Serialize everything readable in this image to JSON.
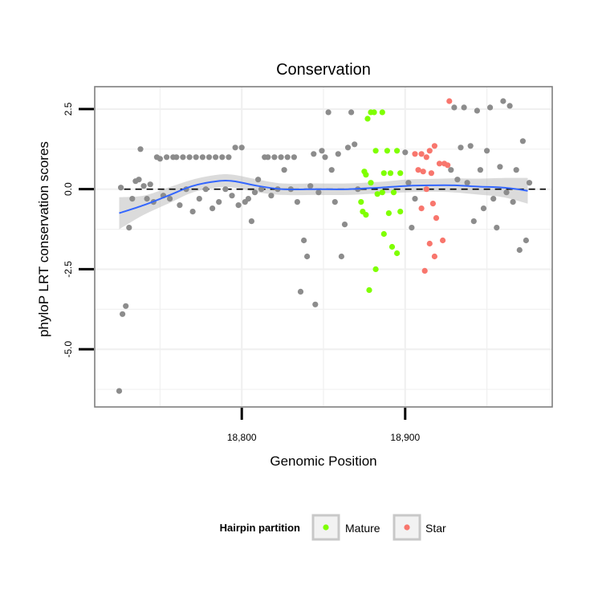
{
  "chart_data": {
    "type": "scatter",
    "title": "Conservation",
    "xlabel": "Genomic Position",
    "ylabel": "phyloP LRT conservation scores",
    "xlim": [
      18710,
      18990
    ],
    "ylim": [
      -6.8,
      3.2
    ],
    "x_ticks": [
      {
        "value": 18800,
        "label": "18,800"
      },
      {
        "value": 18900,
        "label": "18,900"
      }
    ],
    "y_ticks": [
      {
        "value": 2.5,
        "label": "2.5"
      },
      {
        "value": 0.0,
        "label": "0.0"
      },
      {
        "value": -2.5,
        "label": "-2.5"
      },
      {
        "value": -5.0,
        "label": "-5.0"
      }
    ],
    "grid": true,
    "reference_line": {
      "y": 0,
      "style": "dashed",
      "color": "#000000"
    },
    "legend": {
      "title": "Hairpin partition",
      "position": "bottom",
      "entries": [
        {
          "label": "Mature",
          "color": "#7FFF00"
        },
        {
          "label": "Star",
          "color": "#F8766D"
        }
      ]
    },
    "colors": {
      "other": "#8C8C8C",
      "mature": "#7FFF00",
      "star": "#F8766D",
      "smooth": "#3366FF",
      "band": "#BEBEBE"
    },
    "smooth": {
      "x": [
        18725,
        18740,
        18755,
        18770,
        18785,
        18795,
        18810,
        18825,
        18845,
        18865,
        18885,
        18900,
        18915,
        18930,
        18945,
        18960,
        18975
      ],
      "y": [
        -0.75,
        -0.5,
        -0.2,
        0.1,
        0.25,
        0.25,
        0.1,
        0.0,
        0.0,
        0.0,
        0.05,
        0.1,
        0.12,
        0.12,
        0.08,
        0.05,
        -0.05
      ],
      "se": [
        0.5,
        0.3,
        0.25,
        0.2,
        0.2,
        0.2,
        0.2,
        0.18,
        0.18,
        0.18,
        0.18,
        0.2,
        0.2,
        0.22,
        0.25,
        0.3,
        0.4
      ]
    },
    "series": [
      {
        "name": "Mature",
        "points": [
          [
            18875,
            0.55
          ],
          [
            18877,
            2.2
          ],
          [
            18879,
            2.4
          ],
          [
            18881,
            2.4
          ],
          [
            18886,
            2.4
          ],
          [
            18882,
            1.2
          ],
          [
            18889,
            1.2
          ],
          [
            18895,
            1.2
          ],
          [
            18876,
            0.45
          ],
          [
            18879,
            0.2
          ],
          [
            18887,
            0.5
          ],
          [
            18891,
            0.5
          ],
          [
            18897,
            0.5
          ],
          [
            18883,
            -0.15
          ],
          [
            18886,
            -0.1
          ],
          [
            18893,
            -0.1
          ],
          [
            18873,
            -0.4
          ],
          [
            18874,
            -0.7
          ],
          [
            18876,
            -0.8
          ],
          [
            18890,
            -0.75
          ],
          [
            18897,
            -0.7
          ],
          [
            18887,
            -1.4
          ],
          [
            18892,
            -1.8
          ],
          [
            18895,
            -2.0
          ],
          [
            18882,
            -2.5
          ],
          [
            18878,
            -3.15
          ]
        ]
      },
      {
        "name": "Star",
        "points": [
          [
            18927,
            2.75
          ],
          [
            18918,
            1.35
          ],
          [
            18915,
            1.2
          ],
          [
            18913,
            1.0
          ],
          [
            18910,
            1.1
          ],
          [
            18906,
            1.1
          ],
          [
            18921,
            0.8
          ],
          [
            18924,
            0.8
          ],
          [
            18926,
            0.75
          ],
          [
            18908,
            0.6
          ],
          [
            18911,
            0.55
          ],
          [
            18916,
            0.5
          ],
          [
            18913,
            0.0
          ],
          [
            18917,
            -0.45
          ],
          [
            18910,
            -0.6
          ],
          [
            18919,
            -0.9
          ],
          [
            18923,
            -1.6
          ],
          [
            18915,
            -1.7
          ],
          [
            18918,
            -2.1
          ],
          [
            18912,
            -2.55
          ]
        ]
      },
      {
        "name": "",
        "points": [
          [
            18725,
            -6.3
          ],
          [
            18727,
            -3.9
          ],
          [
            18729,
            -3.65
          ],
          [
            18731,
            -1.2
          ],
          [
            18733,
            -0.3
          ],
          [
            18726,
            0.05
          ],
          [
            18735,
            0.25
          ],
          [
            18737,
            0.3
          ],
          [
            18738,
            1.25
          ],
          [
            18740,
            0.1
          ],
          [
            18742,
            -0.3
          ],
          [
            18744,
            0.15
          ],
          [
            18746,
            -0.4
          ],
          [
            18748,
            1.0
          ],
          [
            18750,
            0.95
          ],
          [
            18752,
            -0.2
          ],
          [
            18754,
            1.0
          ],
          [
            18756,
            -0.3
          ],
          [
            18758,
            1.0
          ],
          [
            18760,
            1.0
          ],
          [
            18762,
            -0.5
          ],
          [
            18764,
            1.0
          ],
          [
            18766,
            0.0
          ],
          [
            18768,
            1.0
          ],
          [
            18770,
            -0.7
          ],
          [
            18772,
            1.0
          ],
          [
            18774,
            -0.3
          ],
          [
            18776,
            1.0
          ],
          [
            18778,
            0.0
          ],
          [
            18780,
            1.0
          ],
          [
            18782,
            -0.6
          ],
          [
            18784,
            1.0
          ],
          [
            18786,
            -0.4
          ],
          [
            18788,
            1.0
          ],
          [
            18790,
            0.0
          ],
          [
            18792,
            1.0
          ],
          [
            18794,
            -0.2
          ],
          [
            18796,
            1.3
          ],
          [
            18798,
            -0.5
          ],
          [
            18800,
            1.3
          ],
          [
            18802,
            -0.4
          ],
          [
            18804,
            -0.3
          ],
          [
            18806,
            -1.0
          ],
          [
            18808,
            -0.1
          ],
          [
            18810,
            0.3
          ],
          [
            18812,
            0.0
          ],
          [
            18814,
            1.0
          ],
          [
            18816,
            1.0
          ],
          [
            18818,
            -0.2
          ],
          [
            18820,
            1.0
          ],
          [
            18822,
            0.0
          ],
          [
            18824,
            1.0
          ],
          [
            18826,
            0.6
          ],
          [
            18828,
            1.0
          ],
          [
            18830,
            0.0
          ],
          [
            18832,
            1.0
          ],
          [
            18834,
            -0.4
          ],
          [
            18836,
            -3.2
          ],
          [
            18838,
            -1.6
          ],
          [
            18840,
            -2.1
          ],
          [
            18842,
            0.1
          ],
          [
            18844,
            1.1
          ],
          [
            18845,
            -3.6
          ],
          [
            18847,
            -0.1
          ],
          [
            18849,
            1.2
          ],
          [
            18851,
            1.0
          ],
          [
            18853,
            2.4
          ],
          [
            18855,
            0.6
          ],
          [
            18857,
            -0.4
          ],
          [
            18859,
            1.1
          ],
          [
            18861,
            -2.1
          ],
          [
            18863,
            -1.1
          ],
          [
            18865,
            1.3
          ],
          [
            18867,
            2.4
          ],
          [
            18869,
            1.4
          ],
          [
            18871,
            0.0
          ],
          [
            18900,
            1.15
          ],
          [
            18902,
            0.2
          ],
          [
            18904,
            -1.2
          ],
          [
            18906,
            -0.3
          ],
          [
            18928,
            0.6
          ],
          [
            18930,
            2.55
          ],
          [
            18932,
            0.3
          ],
          [
            18934,
            1.3
          ],
          [
            18936,
            2.55
          ],
          [
            18938,
            0.2
          ],
          [
            18940,
            1.35
          ],
          [
            18942,
            -1.0
          ],
          [
            18944,
            2.45
          ],
          [
            18946,
            0.6
          ],
          [
            18948,
            -0.6
          ],
          [
            18950,
            1.2
          ],
          [
            18952,
            2.55
          ],
          [
            18954,
            -0.3
          ],
          [
            18956,
            -1.2
          ],
          [
            18958,
            0.7
          ],
          [
            18960,
            2.75
          ],
          [
            18962,
            -0.1
          ],
          [
            18964,
            2.6
          ],
          [
            18966,
            -0.4
          ],
          [
            18968,
            0.6
          ],
          [
            18970,
            -1.9
          ],
          [
            18972,
            1.5
          ],
          [
            18974,
            -1.6
          ],
          [
            18976,
            0.2
          ]
        ]
      }
    ]
  }
}
